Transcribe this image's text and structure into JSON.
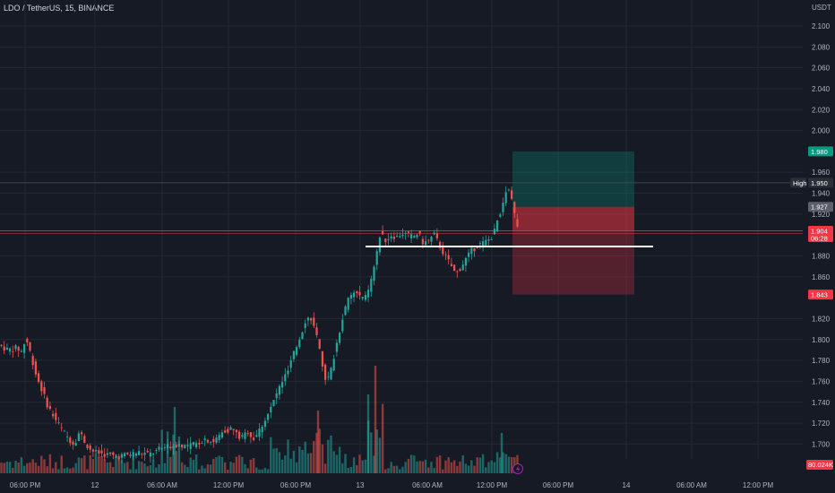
{
  "header": {
    "title": "LDO / TetherUS, 15, BINANCE"
  },
  "colors": {
    "up": "#26a69a",
    "down": "#ef5350",
    "bg": "#161a25",
    "grid": "#242833",
    "text": "#b2b5be",
    "target": "#089981",
    "stop": "#f23645"
  },
  "chart_data": {
    "type": "candlestick",
    "title": "LDO / TetherUS, 15, BINANCE",
    "price_unit": "USDT",
    "y_ticks": [
      "2.100",
      "2.080",
      "2.060",
      "2.040",
      "2.020",
      "2.000",
      "1.960",
      "1.940",
      "1.920",
      "1.880",
      "1.860",
      "1.820",
      "1.800",
      "1.780",
      "1.760",
      "1.740",
      "1.720",
      "1.700"
    ],
    "x_ticks": [
      "06:00 PM",
      "12",
      "06:00 AM",
      "12:00 PM",
      "06:00 PM",
      "13",
      "06:00 AM",
      "12:00 PM",
      "06:00 PM",
      "14",
      "06:00 AM",
      "12:00 PM"
    ],
    "ylim": [
      1.68,
      2.11
    ],
    "price_path": [
      [
        0,
        1.795
      ],
      [
        10,
        1.79
      ],
      [
        20,
        1.792
      ],
      [
        26,
        1.788
      ],
      [
        30,
        1.802
      ],
      [
        36,
        1.785
      ],
      [
        42,
        1.765
      ],
      [
        48,
        1.752
      ],
      [
        54,
        1.738
      ],
      [
        60,
        1.728
      ],
      [
        66,
        1.72
      ],
      [
        72,
        1.712
      ],
      [
        78,
        1.705
      ],
      [
        84,
        1.7
      ],
      [
        90,
        1.712
      ],
      [
        96,
        1.702
      ],
      [
        102,
        1.695
      ],
      [
        108,
        1.692
      ],
      [
        120,
        1.69
      ],
      [
        132,
        1.688
      ],
      [
        144,
        1.69
      ],
      [
        156,
        1.692
      ],
      [
        168,
        1.69
      ],
      [
        180,
        1.695
      ],
      [
        190,
        1.698
      ],
      [
        200,
        1.7
      ],
      [
        210,
        1.698
      ],
      [
        220,
        1.7
      ],
      [
        230,
        1.705
      ],
      [
        240,
        1.702
      ],
      [
        250,
        1.712
      ],
      [
        260,
        1.715
      ],
      [
        270,
        1.705
      ],
      [
        278,
        1.712
      ],
      [
        284,
        1.705
      ],
      [
        290,
        1.712
      ],
      [
        298,
        1.725
      ],
      [
        304,
        1.735
      ],
      [
        310,
        1.748
      ],
      [
        316,
        1.76
      ],
      [
        322,
        1.768
      ],
      [
        330,
        1.788
      ],
      [
        336,
        1.802
      ],
      [
        342,
        1.818
      ],
      [
        348,
        1.822
      ],
      [
        354,
        1.805
      ],
      [
        360,
        1.78
      ],
      [
        366,
        1.758
      ],
      [
        372,
        1.775
      ],
      [
        378,
        1.8
      ],
      [
        384,
        1.822
      ],
      [
        390,
        1.838
      ],
      [
        396,
        1.845
      ],
      [
        402,
        1.842
      ],
      [
        408,
        1.838
      ],
      [
        414,
        1.85
      ],
      [
        420,
        1.872
      ],
      [
        426,
        1.902
      ],
      [
        432,
        1.895
      ],
      [
        438,
        1.9
      ],
      [
        444,
        1.898
      ],
      [
        450,
        1.902
      ],
      [
        456,
        1.9
      ],
      [
        462,
        1.898
      ],
      [
        468,
        1.902
      ],
      [
        474,
        1.892
      ],
      [
        480,
        1.895
      ],
      [
        486,
        1.9
      ],
      [
        492,
        1.89
      ],
      [
        498,
        1.88
      ],
      [
        504,
        1.872
      ],
      [
        510,
        1.862
      ],
      [
        516,
        1.87
      ],
      [
        522,
        1.878
      ],
      [
        528,
        1.885
      ],
      [
        534,
        1.89
      ],
      [
        540,
        1.892
      ],
      [
        546,
        1.895
      ],
      [
        552,
        1.9
      ],
      [
        558,
        1.918
      ],
      [
        564,
        1.932
      ],
      [
        568,
        1.945
      ],
      [
        572,
        1.935
      ],
      [
        576,
        1.918
      ],
      [
        580,
        1.905
      ]
    ],
    "x_first": 0,
    "x_step": 3.2,
    "horizontal_lines": [
      {
        "label": "High",
        "value": 1.95
      },
      {
        "value": 1.904
      }
    ],
    "support_line": {
      "value": 1.889,
      "x_start": 408,
      "x_end": 729
    },
    "long_position": {
      "entry": 1.927,
      "target": 1.98,
      "stop": 1.843,
      "x_start": 572,
      "x_end": 708
    },
    "price_badges": [
      {
        "value": "1.980",
        "kind": "target"
      },
      {
        "value": "1.950",
        "kind": "high"
      },
      {
        "value": "1.927",
        "kind": "entry"
      },
      {
        "value": "1.904",
        "kind": "current",
        "sub": "06:28"
      },
      {
        "value": "1.843",
        "kind": "stop"
      }
    ],
    "volume_label": "80.024K",
    "high_label": "High"
  }
}
